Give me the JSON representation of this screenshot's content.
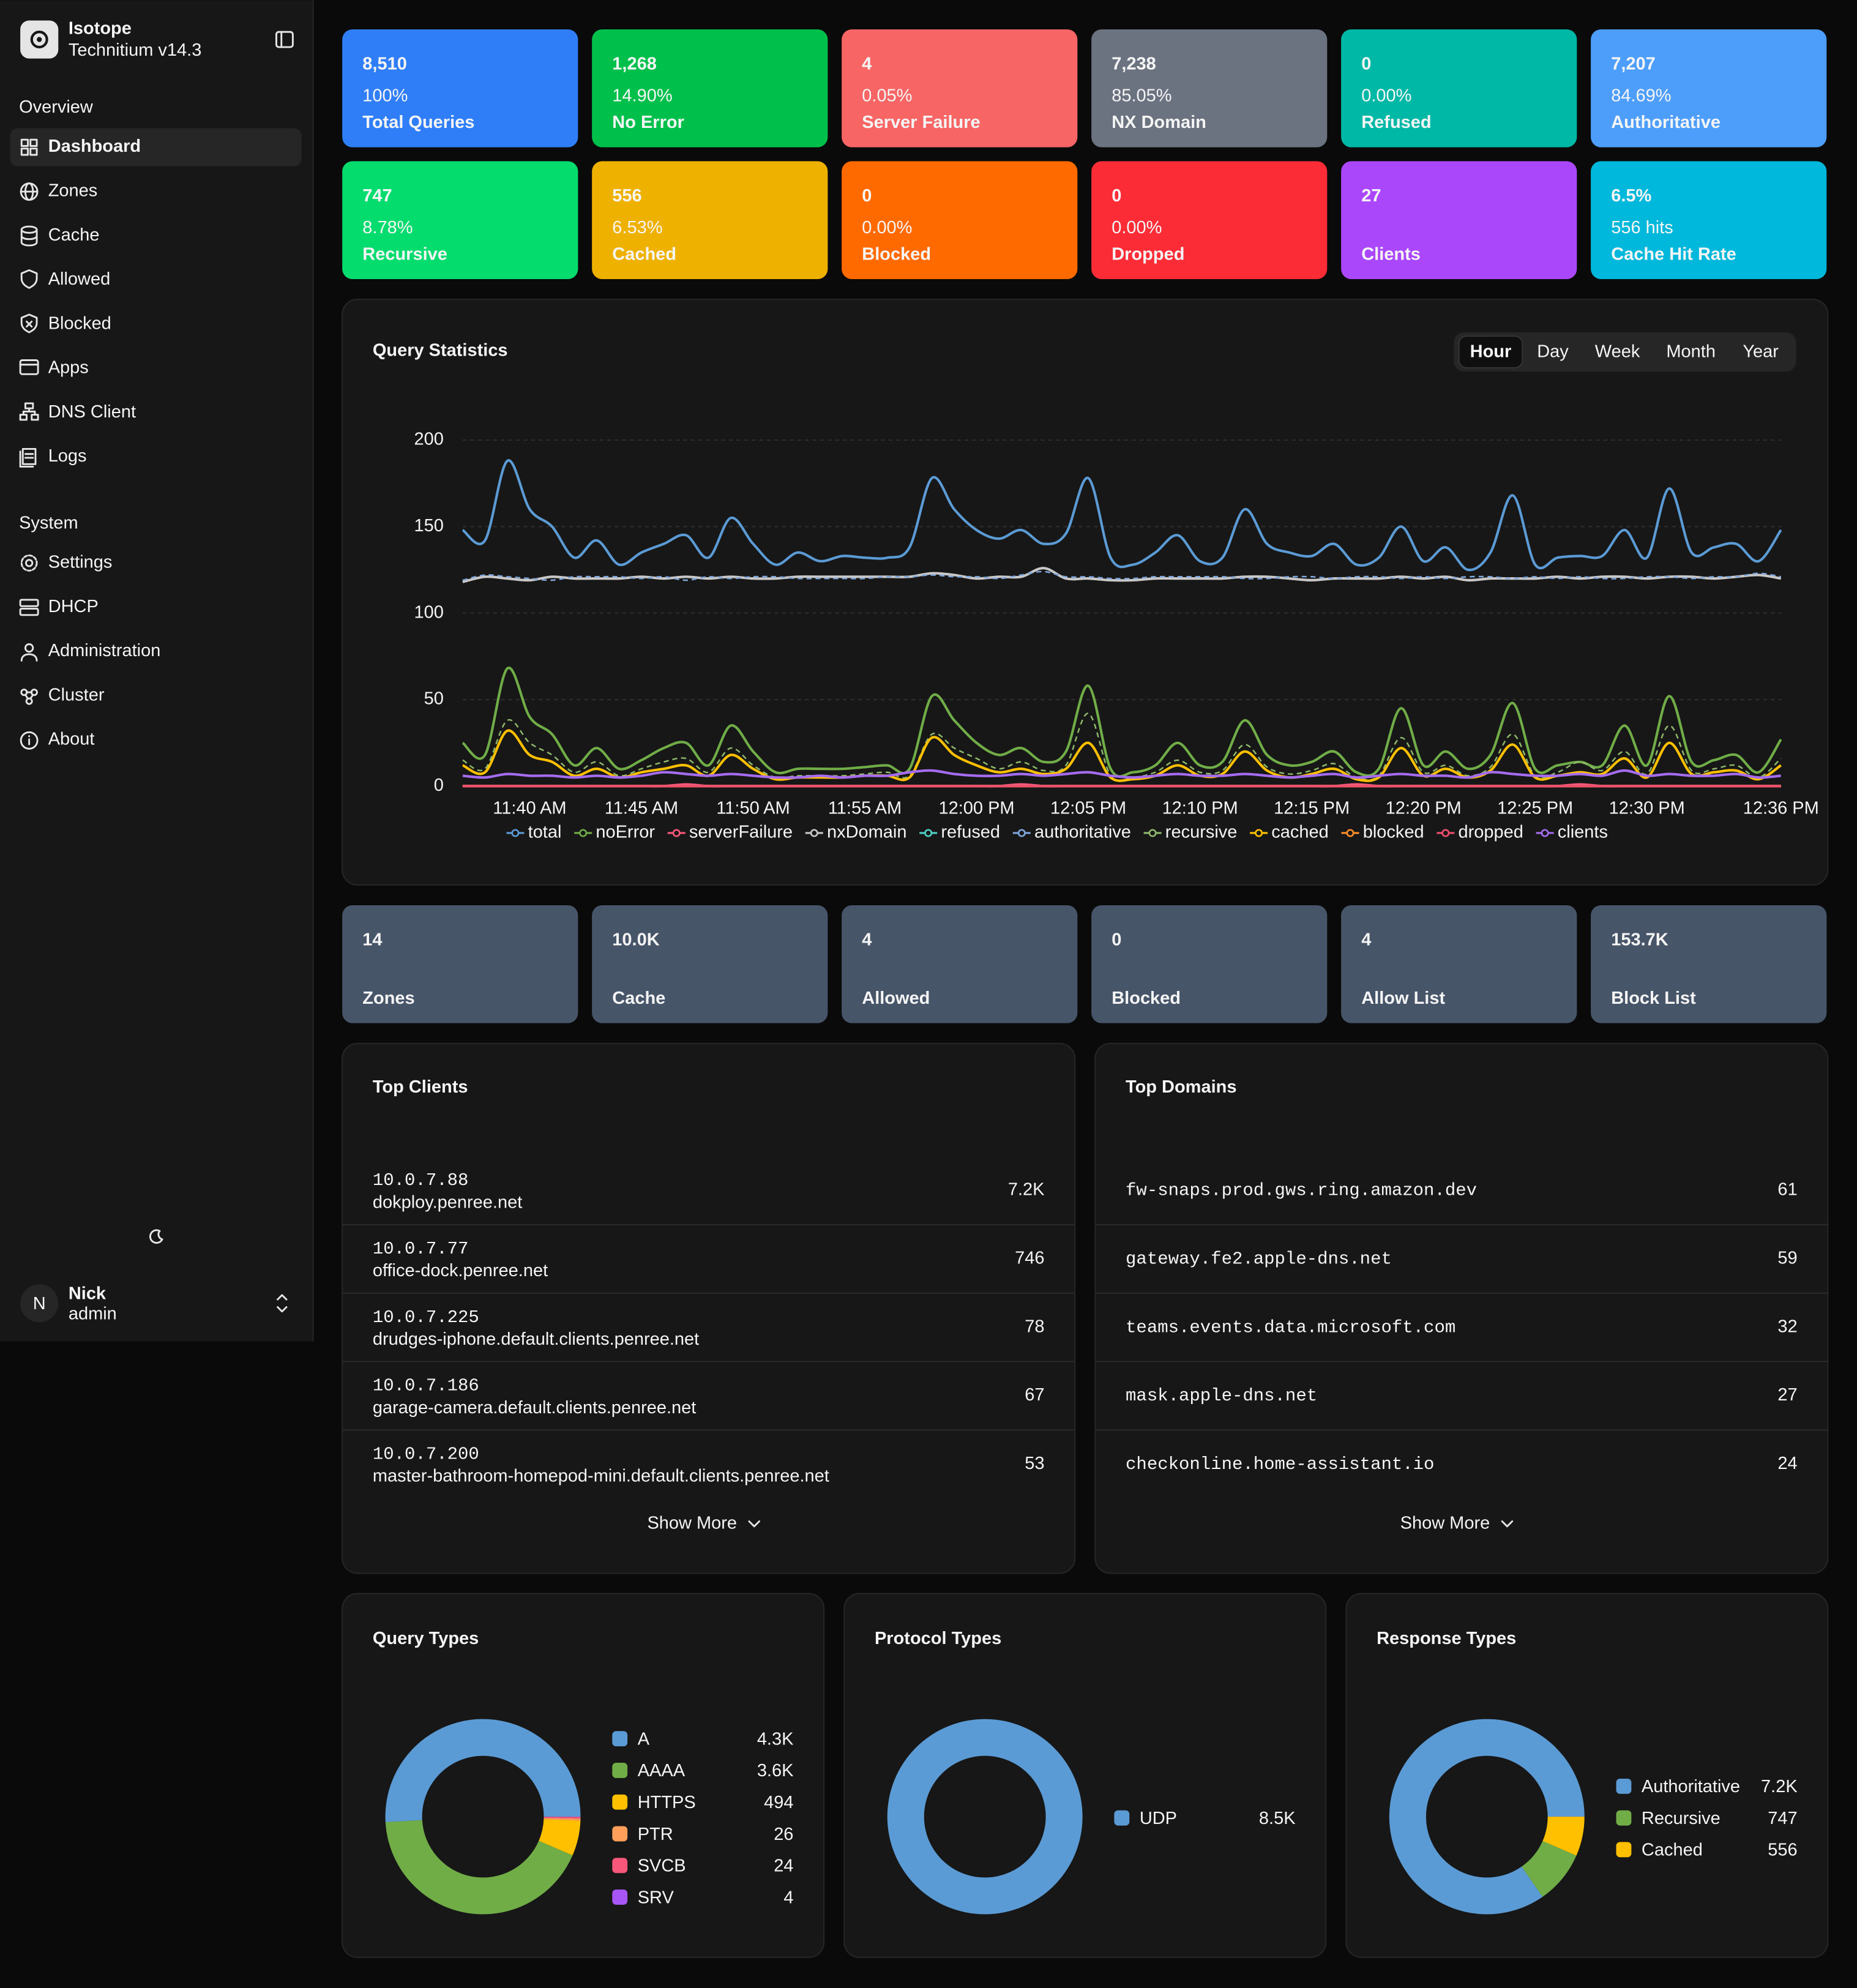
{
  "sidebar": {
    "brand": "Isotope",
    "version": "Technitium v14.3",
    "sections": [
      {
        "title": "Overview",
        "items": [
          "Dashboard",
          "Zones",
          "Cache",
          "Allowed",
          "Blocked",
          "Apps",
          "DNS Client",
          "Logs"
        ]
      },
      {
        "title": "System",
        "items": [
          "Settings",
          "DHCP",
          "Administration",
          "Cluster",
          "About"
        ]
      }
    ],
    "user": {
      "initial": "N",
      "name": "Nick",
      "role": "admin"
    }
  },
  "stat_cards": [
    {
      "value": "8,510",
      "detail": "100%",
      "label": "Total Queries",
      "color": "#2f7ef7"
    },
    {
      "value": "1,268",
      "detail": "14.90%",
      "label": "No Error",
      "color": "#00c04b"
    },
    {
      "value": "4",
      "detail": "0.05%",
      "label": "Server Failure",
      "color": "#f76565"
    },
    {
      "value": "7,238",
      "detail": "85.05%",
      "label": "NX Domain",
      "color": "#6b7280"
    },
    {
      "value": "0",
      "detail": "0.00%",
      "label": "Refused",
      "color": "#00b8a6"
    },
    {
      "value": "7,207",
      "detail": "84.69%",
      "label": "Authoritative",
      "color": "#4d9efa"
    },
    {
      "value": "747",
      "detail": "8.78%",
      "label": "Recursive",
      "color": "#05dc6e"
    },
    {
      "value": "556",
      "detail": "6.53%",
      "label": "Cached",
      "color": "#efb100"
    },
    {
      "value": "0",
      "detail": "0.00%",
      "label": "Blocked",
      "color": "#ff6a00"
    },
    {
      "value": "0",
      "detail": "0.00%",
      "label": "Dropped",
      "color": "#fb2c36"
    },
    {
      "value": "27",
      "label": "Clients",
      "color": "#ab47fb"
    },
    {
      "value": "6.5%",
      "detail": "556 hits",
      "label": "Cache Hit Rate",
      "color": "#00b8db"
    }
  ],
  "query_statistics": {
    "ranges": [
      "Hour",
      "Day",
      "Week",
      "Month",
      "Year"
    ]
  },
  "summary_cards": [
    {
      "value": "14",
      "label": "Zones"
    },
    {
      "value": "10.0K",
      "label": "Cache"
    },
    {
      "value": "4",
      "label": "Allowed"
    },
    {
      "value": "0",
      "label": "Blocked"
    },
    {
      "value": "4",
      "label": "Allow List"
    },
    {
      "value": "153.7K",
      "label": "Block List"
    }
  ],
  "top_clients": {
    "title": "Top Clients",
    "rows": [
      {
        "address": "10.0.7.88",
        "host": "dokploy.penree.net",
        "count": "7.2K"
      },
      {
        "address": "10.0.7.77",
        "host": "office-dock.penree.net",
        "count": "746"
      },
      {
        "address": "10.0.7.225",
        "host": "drudges-iphone.default.clients.penree.net",
        "count": "78"
      },
      {
        "address": "10.0.7.186",
        "host": "garage-camera.default.clients.penree.net",
        "count": "67"
      },
      {
        "address": "10.0.7.200",
        "host": "master-bathroom-homepod-mini.default.clients.penree.net",
        "count": "53"
      }
    ],
    "more": "Show More"
  },
  "top_domains": {
    "title": "Top Domains",
    "rows": [
      {
        "domain": "fw-snaps.prod.gws.ring.amazon.dev",
        "count": "61"
      },
      {
        "domain": "gateway.fe2.apple-dns.net",
        "count": "59"
      },
      {
        "domain": "teams.events.data.microsoft.com",
        "count": "32"
      },
      {
        "domain": "mask.apple-dns.net",
        "count": "27"
      },
      {
        "domain": "checkonline.home-assistant.io",
        "count": "24"
      }
    ],
    "more": "Show More"
  },
  "chart_data": [
    {
      "type": "line",
      "title": "Query Statistics",
      "categories": [
        null,
        null,
        null,
        "11:40 AM",
        null,
        null,
        null,
        null,
        "11:45 AM",
        null,
        null,
        null,
        null,
        "11:50 AM",
        null,
        null,
        null,
        null,
        "11:55 AM",
        null,
        null,
        null,
        null,
        "12:00 PM",
        null,
        null,
        null,
        null,
        "12:05 PM",
        null,
        null,
        null,
        null,
        "12:10 PM",
        null,
        null,
        null,
        null,
        "12:15 PM",
        null,
        null,
        null,
        null,
        "12:20 PM",
        null,
        null,
        null,
        null,
        "12:25 PM",
        null,
        null,
        null,
        null,
        "12:30 PM",
        null,
        null,
        null,
        null,
        null,
        "12:36 PM"
      ],
      "ylim": [
        0,
        200
      ],
      "yticks": [
        0,
        50,
        100,
        150,
        200
      ],
      "grid": true,
      "legend": "bottom",
      "series": [
        {
          "name": "total",
          "color": "#5b9bd5",
          "values": [
            148,
            142,
            188,
            160,
            150,
            132,
            142,
            128,
            135,
            140,
            145,
            132,
            155,
            140,
            128,
            135,
            130,
            133,
            132,
            132,
            138,
            178,
            160,
            148,
            143,
            148,
            140,
            146,
            178,
            132,
            128,
            135,
            145,
            130,
            132,
            160,
            140,
            135,
            133,
            140,
            128,
            132,
            150,
            130,
            138,
            125,
            135,
            168,
            128,
            132,
            133,
            133,
            148,
            132,
            172,
            135,
            138,
            140,
            130,
            148
          ]
        },
        {
          "name": "noError",
          "color": "#70ad47",
          "values": [
            25,
            18,
            68,
            40,
            30,
            12,
            22,
            10,
            15,
            22,
            25,
            12,
            35,
            20,
            8,
            10,
            10,
            10,
            11,
            12,
            10,
            52,
            38,
            25,
            18,
            22,
            14,
            20,
            58,
            10,
            8,
            12,
            25,
            12,
            14,
            38,
            18,
            12,
            14,
            20,
            8,
            10,
            45,
            12,
            20,
            10,
            18,
            48,
            10,
            12,
            14,
            12,
            35,
            12,
            52,
            14,
            15,
            18,
            8,
            27
          ]
        },
        {
          "name": "serverFailure",
          "color": "#f7577a",
          "values": [
            0,
            0,
            0,
            0,
            0,
            0,
            0,
            0,
            0,
            0,
            1,
            0,
            0,
            0,
            0,
            0,
            0,
            0,
            0,
            0,
            0,
            0,
            0,
            0,
            0,
            1,
            0,
            0,
            0,
            0,
            0,
            0,
            0,
            0,
            0,
            0,
            0,
            0,
            0,
            0,
            1,
            0,
            0,
            0,
            0,
            0,
            0,
            0,
            0,
            0,
            1,
            0,
            0,
            0,
            0,
            0,
            0,
            0,
            0,
            0
          ]
        },
        {
          "name": "nxDomain",
          "color": "#c8c8c8",
          "values": [
            118,
            121,
            120,
            119,
            121,
            120,
            120,
            120,
            121,
            120,
            121,
            120,
            121,
            120,
            120,
            121,
            121,
            121,
            121,
            121,
            121,
            123,
            122,
            120,
            121,
            121,
            126,
            120,
            120,
            119,
            119,
            120,
            120,
            120,
            120,
            121,
            121,
            120,
            119,
            120,
            120,
            120,
            121,
            120,
            121,
            119,
            120,
            120,
            120,
            121,
            120,
            121,
            121,
            120,
            121,
            121,
            120,
            121,
            122,
            120
          ]
        },
        {
          "name": "refused",
          "color": "#4fd1c5",
          "values": [
            0,
            0,
            0,
            0,
            0,
            0,
            0,
            0,
            0,
            0,
            0,
            0,
            0,
            0,
            0,
            0,
            0,
            0,
            0,
            0,
            0,
            0,
            0,
            0,
            0,
            0,
            0,
            0,
            0,
            0,
            0,
            0,
            0,
            0,
            0,
            0,
            0,
            0,
            0,
            0,
            0,
            0,
            0,
            0,
            0,
            0,
            0,
            0,
            0,
            0,
            0,
            0,
            0,
            0,
            0,
            0,
            0,
            0,
            0,
            0
          ]
        },
        {
          "name": "authoritative",
          "color": "#7fa6dc",
          "dashed": true,
          "values": [
            119,
            122,
            121,
            120,
            119,
            121,
            121,
            121,
            120,
            121,
            119,
            121,
            120,
            121,
            121,
            120,
            120,
            120,
            120,
            121,
            121,
            122,
            121,
            121,
            120,
            122,
            124,
            121,
            121,
            120,
            120,
            121,
            121,
            121,
            121,
            120,
            120,
            121,
            121,
            120,
            121,
            121,
            120,
            121,
            120,
            121,
            121,
            120,
            121,
            120,
            121,
            120,
            120,
            121,
            121,
            120,
            121,
            121,
            123,
            121
          ]
        },
        {
          "name": "recursive",
          "color": "#8fb86b",
          "dashed": true,
          "values": [
            15,
            10,
            38,
            25,
            18,
            8,
            14,
            6,
            10,
            14,
            16,
            8,
            22,
            12,
            5,
            6,
            6,
            6,
            7,
            8,
            6,
            30,
            22,
            16,
            10,
            14,
            9,
            12,
            42,
            6,
            5,
            8,
            15,
            8,
            9,
            24,
            11,
            7,
            9,
            13,
            5,
            6,
            28,
            8,
            12,
            6,
            11,
            30,
            6,
            8,
            14,
            9,
            20,
            7,
            35,
            9,
            10,
            12,
            5,
            16
          ]
        },
        {
          "name": "cached",
          "color": "#ffc000",
          "values": [
            12,
            8,
            32,
            18,
            14,
            6,
            10,
            5,
            8,
            10,
            12,
            6,
            18,
            10,
            4,
            5,
            5,
            5,
            6,
            6,
            5,
            28,
            18,
            12,
            8,
            10,
            7,
            10,
            25,
            5,
            4,
            6,
            12,
            6,
            7,
            20,
            9,
            5,
            7,
            10,
            4,
            5,
            22,
            6,
            10,
            5,
            9,
            24,
            5,
            6,
            8,
            7,
            16,
            5,
            25,
            7,
            8,
            9,
            4,
            12
          ]
        },
        {
          "name": "blocked",
          "color": "#ff8c2a",
          "values": [
            0,
            0,
            0,
            0,
            0,
            0,
            0,
            0,
            0,
            0,
            0,
            0,
            0,
            0,
            0,
            0,
            0,
            0,
            0,
            0,
            0,
            0,
            0,
            0,
            0,
            0,
            0,
            0,
            0,
            0,
            0,
            0,
            0,
            0,
            0,
            0,
            0,
            0,
            0,
            0,
            0,
            0,
            0,
            0,
            0,
            0,
            0,
            0,
            0,
            0,
            0,
            0,
            0,
            0,
            0,
            0,
            0,
            0,
            0,
            0
          ]
        },
        {
          "name": "dropped",
          "color": "#f04e6e",
          "values": [
            0,
            0,
            0,
            0,
            0,
            0,
            0,
            0,
            0,
            0,
            0,
            0,
            0,
            0,
            0,
            0,
            0,
            0,
            0,
            0,
            0,
            0,
            0,
            0,
            0,
            0,
            0,
            0,
            0,
            0,
            0,
            0,
            0,
            0,
            0,
            0,
            0,
            0,
            0,
            0,
            0,
            0,
            0,
            0,
            0,
            0,
            0,
            0,
            0,
            0,
            0,
            0,
            0,
            0,
            0,
            0,
            0,
            0,
            0,
            0
          ]
        },
        {
          "name": "clients",
          "color": "#a56cf0",
          "values": [
            6,
            5,
            7,
            6,
            6,
            5,
            6,
            5,
            6,
            8,
            7,
            6,
            7,
            6,
            5,
            5,
            6,
            5,
            6,
            6,
            8,
            9,
            7,
            6,
            6,
            7,
            6,
            7,
            8,
            6,
            5,
            6,
            7,
            6,
            6,
            7,
            6,
            5,
            6,
            7,
            5,
            6,
            7,
            6,
            6,
            5,
            8,
            7,
            6,
            6,
            7,
            6,
            9,
            6,
            7,
            6,
            6,
            7,
            5,
            6
          ]
        }
      ]
    },
    {
      "type": "pie",
      "donut": true,
      "title": "Query Types",
      "categories": [
        "A",
        "AAAA",
        "HTTPS",
        "PTR",
        "SVCB",
        "SRV"
      ],
      "values": [
        4300,
        3600,
        494,
        26,
        24,
        4
      ],
      "value_labels": [
        "4.3K",
        "3.6K",
        "494",
        "26",
        "24",
        "4"
      ],
      "colors": [
        "#5b9bd5",
        "#70ad47",
        "#ffc000",
        "#ff9f5a",
        "#f7577a",
        "#a855f7"
      ]
    },
    {
      "type": "pie",
      "donut": true,
      "title": "Protocol Types",
      "categories": [
        "UDP"
      ],
      "values": [
        8500
      ],
      "value_labels": [
        "8.5K"
      ],
      "colors": [
        "#5b9bd5"
      ]
    },
    {
      "type": "pie",
      "donut": true,
      "title": "Response Types",
      "categories": [
        "Authoritative",
        "Recursive",
        "Cached"
      ],
      "values": [
        7200,
        747,
        556
      ],
      "value_labels": [
        "7.2K",
        "747",
        "556"
      ],
      "colors": [
        "#5b9bd5",
        "#70ad47",
        "#ffc000"
      ]
    }
  ]
}
